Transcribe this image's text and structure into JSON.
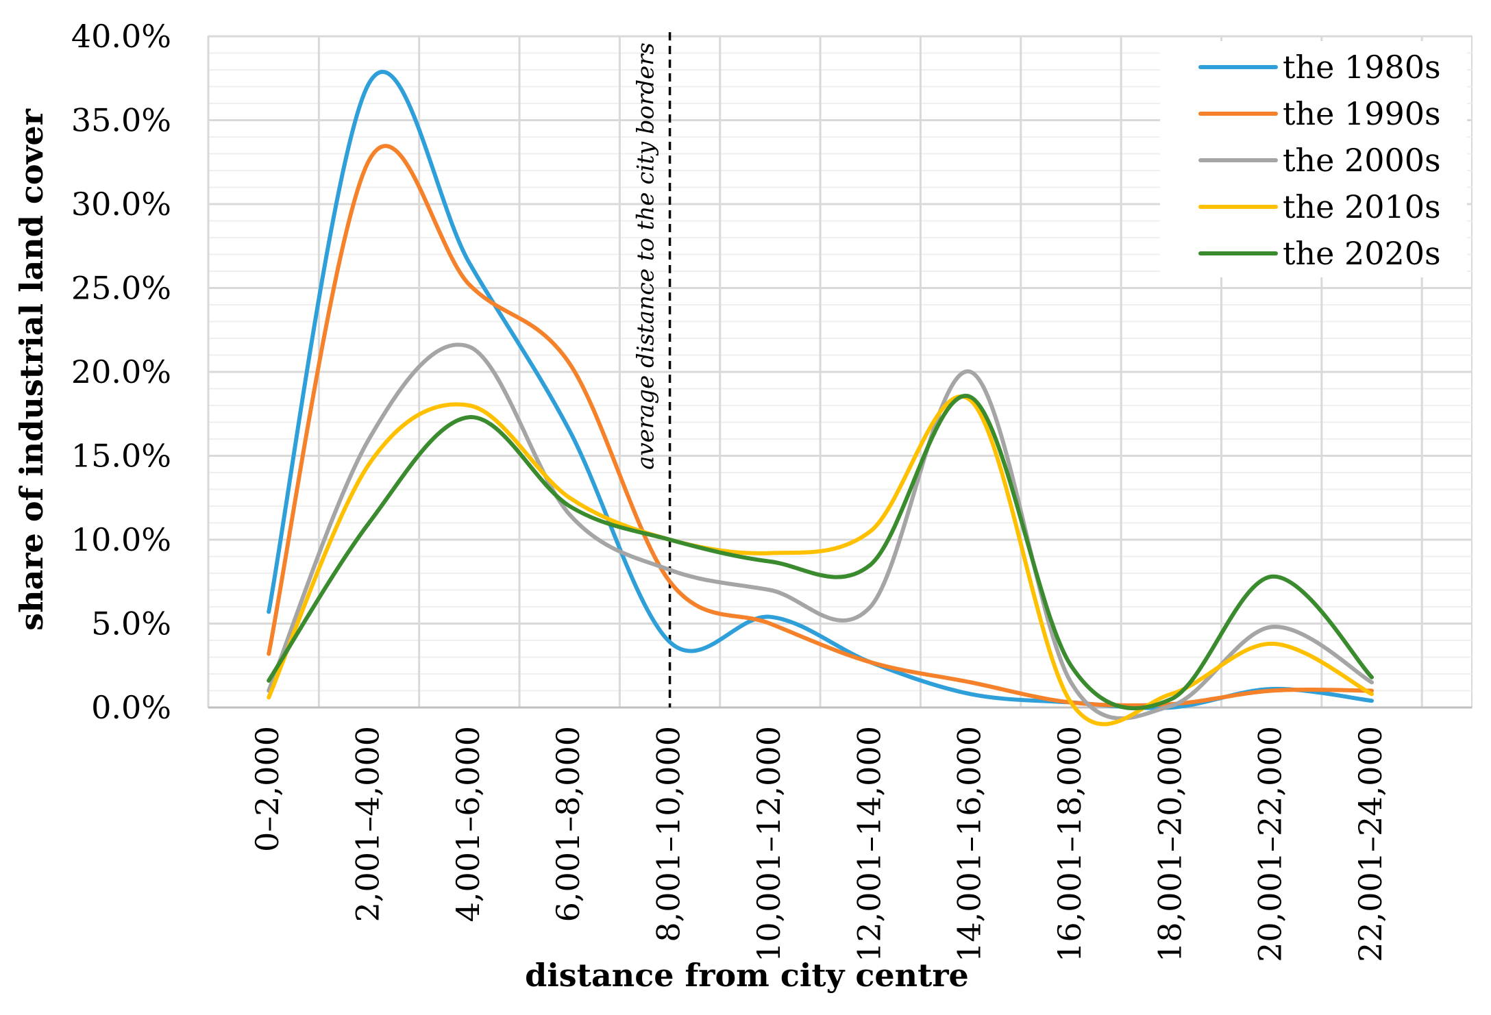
{
  "chart_data": {
    "type": "line",
    "title": "",
    "xlabel": "distance from city centre",
    "ylabel": "share of industrial land cover",
    "ylim": [
      0,
      40
    ],
    "ytick_step": 5,
    "ytick_labels": [
      "0.0%",
      "5.0%",
      "10.0%",
      "15.0%",
      "20.0%",
      "25.0%",
      "30.0%",
      "35.0%",
      "40.0%"
    ],
    "grid": true,
    "legend_position": "top-right",
    "categories": [
      "0–2,000",
      "2,001–4,000",
      "4,001–6,000",
      "6,001–8,000",
      "8,001–10,000",
      "10,001–12,000",
      "12,001–14,000",
      "14,001–16,000",
      "16,001–18,000",
      "18,001–20,000",
      "20,001–22,000",
      "22,001–24,000"
    ],
    "series": [
      {
        "name": "the 1980s",
        "color": "#2E9FD9",
        "values": [
          5.7,
          37.2,
          26.5,
          16.5,
          3.9,
          5.4,
          2.7,
          0.8,
          0.3,
          0.0,
          1.1,
          0.4
        ]
      },
      {
        "name": "the 1990s",
        "color": "#F5822A",
        "values": [
          3.2,
          32.6,
          25.2,
          20.5,
          7.5,
          5.0,
          2.7,
          1.5,
          0.3,
          0.2,
          1.0,
          1.0
        ]
      },
      {
        "name": "the 2000s",
        "color": "#A5A5A5",
        "values": [
          1.0,
          16.0,
          21.5,
          11.5,
          8.2,
          7.0,
          6.0,
          20.0,
          1.5,
          0.1,
          4.8,
          1.5
        ]
      },
      {
        "name": "the 2010s",
        "color": "#FFC000",
        "values": [
          0.6,
          14.5,
          18.0,
          12.5,
          10.0,
          9.2,
          10.5,
          18.3,
          0.3,
          0.8,
          3.8,
          0.8
        ]
      },
      {
        "name": "the 2020s",
        "color": "#3A8A2E",
        "values": [
          1.6,
          11.0,
          17.3,
          12.0,
          10.0,
          8.7,
          8.5,
          18.5,
          2.5,
          0.5,
          7.8,
          1.8
        ]
      }
    ],
    "annotations": [
      {
        "text": "average distance to the city borders",
        "at_category_index": 4,
        "style": "dashed vertical line"
      }
    ]
  }
}
